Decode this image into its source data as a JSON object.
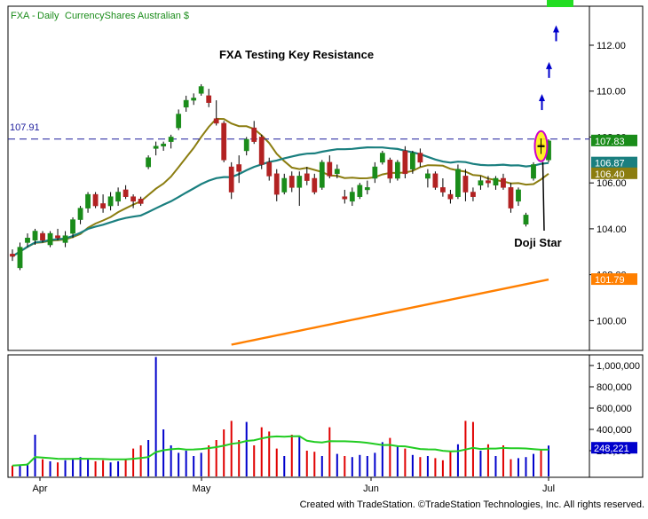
{
  "header": {
    "symbol": "FXA",
    "sep": " - ",
    "period": "Daily",
    "name": "CurrencyShares Australian $"
  },
  "footer": "Created with TradeStation. ©TradeStation Technologies, Inc. All rights reserved.",
  "colors": {
    "up": "#1a8c1a",
    "down": "#b22222",
    "ma_short": "#8b7d10",
    "ma_mid": "#1a7f7f",
    "ma_long": "#ff7f00",
    "volume_up": "#0000cc",
    "volume_down": "#e00000",
    "volume_avg": "#22cc22",
    "resistance": "#1c1c9c",
    "arrow": "#0000cc"
  },
  "chart_data": {
    "type": "candlestick",
    "title": "FXA Testing Key Resistance",
    "x_labels": [
      "Apr",
      "May",
      "Jun",
      "Jul"
    ],
    "y_ticks": [
      "100.00",
      "102.00",
      "104.00",
      "106.00",
      "108.00",
      "110.00",
      "112.00"
    ],
    "volume_ticks": [
      "200,000",
      "400,000",
      "600,000",
      "800,000",
      "1,000,000"
    ],
    "ylim": [
      98.7,
      113.7
    ],
    "volume_max": 1100000,
    "resistance_level": 107.91,
    "resistance_label": "107.91",
    "annotation": "Doji Star",
    "price_labels": [
      {
        "label": "107.83",
        "value": 107.83,
        "series": "close"
      },
      {
        "label": "106.87",
        "value": 106.87,
        "series": "ma_mid"
      },
      {
        "label": "106.40",
        "value": 106.4,
        "series": "ma_short"
      },
      {
        "label": "101.79",
        "value": 101.79,
        "series": "ma_long"
      }
    ],
    "volume_label": "248,221",
    "volume_label_value": 248221,
    "candles": [
      {
        "o": 102.9,
        "h": 103.1,
        "l": 102.6,
        "c": 102.8,
        "v": 60000
      },
      {
        "o": 102.3,
        "h": 103.4,
        "l": 102.2,
        "c": 103.2,
        "v": 70000
      },
      {
        "o": 103.4,
        "h": 103.8,
        "l": 103.2,
        "c": 103.6,
        "v": 80000
      },
      {
        "o": 103.5,
        "h": 104.0,
        "l": 103.3,
        "c": 103.9,
        "v": 350000
      },
      {
        "o": 103.8,
        "h": 103.9,
        "l": 103.4,
        "c": 103.5,
        "v": 120000
      },
      {
        "o": 103.3,
        "h": 103.9,
        "l": 103.2,
        "c": 103.8,
        "v": 100000
      },
      {
        "o": 103.7,
        "h": 104.0,
        "l": 103.5,
        "c": 103.6,
        "v": 90000
      },
      {
        "o": 103.4,
        "h": 103.9,
        "l": 103.2,
        "c": 103.7,
        "v": 110000
      },
      {
        "o": 103.8,
        "h": 104.5,
        "l": 103.6,
        "c": 104.4,
        "v": 130000
      },
      {
        "o": 104.4,
        "h": 105.0,
        "l": 104.2,
        "c": 104.9,
        "v": 140000
      },
      {
        "o": 104.9,
        "h": 105.6,
        "l": 104.7,
        "c": 105.5,
        "v": 120000
      },
      {
        "o": 105.5,
        "h": 105.6,
        "l": 104.9,
        "c": 105.0,
        "v": 100000
      },
      {
        "o": 105.1,
        "h": 105.5,
        "l": 104.7,
        "c": 104.9,
        "v": 110000
      },
      {
        "o": 105.0,
        "h": 105.6,
        "l": 104.8,
        "c": 105.4,
        "v": 90000
      },
      {
        "o": 105.2,
        "h": 105.8,
        "l": 105.0,
        "c": 105.6,
        "v": 100000
      },
      {
        "o": 105.7,
        "h": 105.9,
        "l": 105.3,
        "c": 105.4,
        "v": 120000
      },
      {
        "o": 105.4,
        "h": 105.5,
        "l": 104.9,
        "c": 105.2,
        "v": 220000
      },
      {
        "o": 105.3,
        "h": 105.4,
        "l": 105.0,
        "c": 105.1,
        "v": 250000
      },
      {
        "o": 106.7,
        "h": 107.2,
        "l": 106.6,
        "c": 107.1,
        "v": 300000
      },
      {
        "o": 107.5,
        "h": 107.8,
        "l": 107.2,
        "c": 107.6,
        "v": 1080000
      },
      {
        "o": 107.6,
        "h": 107.8,
        "l": 107.4,
        "c": 107.7,
        "v": 400000
      },
      {
        "o": 107.8,
        "h": 108.1,
        "l": 107.5,
        "c": 108.0,
        "v": 250000
      },
      {
        "o": 108.4,
        "h": 109.2,
        "l": 108.3,
        "c": 109.0,
        "v": 180000
      },
      {
        "o": 109.3,
        "h": 109.8,
        "l": 109.1,
        "c": 109.6,
        "v": 200000
      },
      {
        "o": 109.6,
        "h": 109.9,
        "l": 109.4,
        "c": 109.7,
        "v": 150000
      },
      {
        "o": 109.9,
        "h": 110.3,
        "l": 109.8,
        "c": 110.2,
        "v": 180000
      },
      {
        "o": 109.8,
        "h": 110.1,
        "l": 109.3,
        "c": 109.5,
        "v": 250000
      },
      {
        "o": 108.8,
        "h": 109.6,
        "l": 108.5,
        "c": 108.6,
        "v": 300000
      },
      {
        "o": 108.6,
        "h": 108.7,
        "l": 106.9,
        "c": 107.0,
        "v": 400000
      },
      {
        "o": 106.7,
        "h": 106.9,
        "l": 105.3,
        "c": 105.6,
        "v": 480000
      },
      {
        "o": 106.8,
        "h": 107.2,
        "l": 106.0,
        "c": 106.5,
        "v": 300000
      },
      {
        "o": 107.4,
        "h": 108.0,
        "l": 107.2,
        "c": 107.9,
        "v": 470000
      },
      {
        "o": 108.4,
        "h": 108.7,
        "l": 107.7,
        "c": 107.8,
        "v": 250000
      },
      {
        "o": 108.0,
        "h": 108.1,
        "l": 106.6,
        "c": 106.8,
        "v": 420000
      },
      {
        "o": 106.9,
        "h": 107.1,
        "l": 106.1,
        "c": 106.3,
        "v": 380000
      },
      {
        "o": 106.4,
        "h": 106.6,
        "l": 105.2,
        "c": 105.5,
        "v": 220000
      },
      {
        "o": 105.6,
        "h": 106.4,
        "l": 105.5,
        "c": 106.2,
        "v": 150000
      },
      {
        "o": 106.3,
        "h": 106.5,
        "l": 105.6,
        "c": 105.8,
        "v": 350000
      },
      {
        "o": 105.8,
        "h": 106.5,
        "l": 105.0,
        "c": 106.3,
        "v": 330000
      },
      {
        "o": 106.4,
        "h": 106.7,
        "l": 105.9,
        "c": 106.1,
        "v": 200000
      },
      {
        "o": 106.2,
        "h": 106.4,
        "l": 105.5,
        "c": 105.6,
        "v": 190000
      },
      {
        "o": 105.8,
        "h": 107.0,
        "l": 105.7,
        "c": 106.9,
        "v": 150000
      },
      {
        "o": 106.9,
        "h": 107.2,
        "l": 106.2,
        "c": 106.3,
        "v": 420000
      },
      {
        "o": 106.4,
        "h": 106.8,
        "l": 106.2,
        "c": 106.6,
        "v": 170000
      },
      {
        "o": 105.4,
        "h": 105.7,
        "l": 105.1,
        "c": 105.3,
        "v": 150000
      },
      {
        "o": 105.2,
        "h": 105.8,
        "l": 105.0,
        "c": 105.6,
        "v": 140000
      },
      {
        "o": 105.4,
        "h": 106.0,
        "l": 105.3,
        "c": 105.9,
        "v": 160000
      },
      {
        "o": 105.7,
        "h": 106.1,
        "l": 105.5,
        "c": 105.8,
        "v": 150000
      },
      {
        "o": 106.2,
        "h": 106.9,
        "l": 106.0,
        "c": 106.7,
        "v": 180000
      },
      {
        "o": 106.9,
        "h": 107.4,
        "l": 106.8,
        "c": 107.3,
        "v": 280000
      },
      {
        "o": 107.0,
        "h": 107.1,
        "l": 106.0,
        "c": 106.2,
        "v": 320000
      },
      {
        "o": 106.2,
        "h": 107.0,
        "l": 106.1,
        "c": 106.9,
        "v": 240000
      },
      {
        "o": 107.4,
        "h": 107.6,
        "l": 106.2,
        "c": 106.4,
        "v": 220000
      },
      {
        "o": 106.6,
        "h": 107.4,
        "l": 106.4,
        "c": 107.3,
        "v": 160000
      },
      {
        "o": 107.3,
        "h": 107.5,
        "l": 106.7,
        "c": 106.9,
        "v": 140000
      },
      {
        "o": 106.2,
        "h": 106.6,
        "l": 105.8,
        "c": 106.4,
        "v": 150000
      },
      {
        "o": 106.4,
        "h": 106.5,
        "l": 105.7,
        "c": 105.8,
        "v": 130000
      },
      {
        "o": 105.8,
        "h": 106.2,
        "l": 105.4,
        "c": 105.6,
        "v": 110000
      },
      {
        "o": 105.5,
        "h": 105.7,
        "l": 105.1,
        "c": 105.3,
        "v": 200000
      },
      {
        "o": 105.4,
        "h": 106.8,
        "l": 105.3,
        "c": 106.6,
        "v": 260000
      },
      {
        "o": 106.3,
        "h": 106.6,
        "l": 105.2,
        "c": 105.6,
        "v": 480000
      },
      {
        "o": 105.6,
        "h": 105.8,
        "l": 105.2,
        "c": 105.4,
        "v": 470000
      },
      {
        "o": 105.9,
        "h": 106.3,
        "l": 105.7,
        "c": 106.1,
        "v": 200000
      },
      {
        "o": 106.1,
        "h": 106.3,
        "l": 105.8,
        "c": 106.0,
        "v": 260000
      },
      {
        "o": 105.9,
        "h": 106.3,
        "l": 105.7,
        "c": 106.2,
        "v": 150000
      },
      {
        "o": 106.2,
        "h": 106.4,
        "l": 105.7,
        "c": 105.8,
        "v": 250000
      },
      {
        "o": 105.8,
        "h": 106.0,
        "l": 104.7,
        "c": 104.9,
        "v": 120000
      },
      {
        "o": 105.2,
        "h": 105.8,
        "l": 105.0,
        "c": 105.7,
        "v": 130000
      },
      {
        "o": 104.2,
        "h": 104.7,
        "l": 104.1,
        "c": 104.6,
        "v": 140000
      },
      {
        "o": 106.2,
        "h": 106.9,
        "l": 106.1,
        "c": 106.8,
        "v": 170000
      },
      {
        "o": 107.7,
        "h": 107.9,
        "l": 107.3,
        "c": 107.6,
        "v": 210000
      },
      {
        "o": 107.0,
        "h": 107.9,
        "l": 106.9,
        "c": 107.83,
        "v": 248221
      }
    ]
  }
}
